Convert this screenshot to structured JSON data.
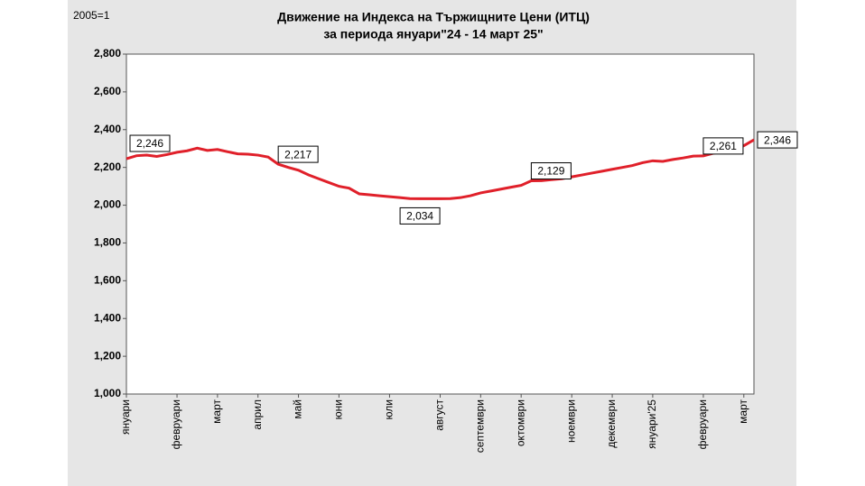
{
  "chart_data": {
    "type": "line",
    "title": [
      "Движение на Индекса на Тържищните Цени (ИТЦ)",
      "за периода януари\"24 - 14 март 25\""
    ],
    "y_unit": "2005=1",
    "categories": [
      "януари",
      null,
      null,
      null,
      null,
      "февруари",
      null,
      null,
      null,
      "март",
      null,
      null,
      null,
      "април",
      null,
      null,
      null,
      "май",
      null,
      null,
      null,
      "юни",
      null,
      null,
      null,
      null,
      "юли",
      null,
      null,
      null,
      null,
      "август",
      null,
      null,
      null,
      "септември",
      null,
      null,
      null,
      "октомври",
      null,
      null,
      null,
      null,
      "ноември",
      null,
      null,
      null,
      "декември",
      null,
      null,
      null,
      "януари'25",
      null,
      null,
      null,
      null,
      "февруари",
      null,
      null,
      null,
      "март",
      null
    ],
    "series": [
      {
        "name": "ИТЦ",
        "color": "#e0202a",
        "values": [
          2.246,
          2.262,
          2.265,
          2.258,
          2.268,
          2.28,
          2.288,
          2.302,
          2.29,
          2.295,
          2.283,
          2.272,
          2.27,
          2.265,
          2.255,
          2.217,
          2.2,
          2.185,
          2.16,
          2.14,
          2.12,
          2.1,
          2.09,
          2.06,
          2.055,
          2.05,
          2.045,
          2.04,
          2.035,
          2.034,
          2.034,
          2.034,
          2.035,
          2.04,
          2.05,
          2.065,
          2.075,
          2.085,
          2.095,
          2.105,
          2.129,
          2.13,
          2.135,
          2.14,
          2.15,
          2.16,
          2.17,
          2.18,
          2.19,
          2.2,
          2.21,
          2.225,
          2.235,
          2.232,
          2.242,
          2.25,
          2.26,
          2.261,
          2.275,
          2.285,
          2.295,
          2.315,
          2.346
        ],
        "value_labels": [
          "2,246",
          null,
          null,
          null,
          null,
          null,
          null,
          null,
          null,
          null,
          null,
          null,
          null,
          null,
          null,
          "2,217",
          null,
          null,
          null,
          null,
          null,
          null,
          null,
          null,
          null,
          null,
          null,
          null,
          null,
          "2,034",
          null,
          null,
          null,
          null,
          null,
          null,
          null,
          null,
          null,
          null,
          "2,129",
          null,
          null,
          null,
          null,
          null,
          null,
          null,
          null,
          null,
          null,
          null,
          null,
          null,
          null,
          null,
          null,
          "2,261",
          null,
          null,
          null,
          null,
          "2,346"
        ]
      }
    ],
    "ylim": [
      1.0,
      2.8
    ],
    "yticks": [
      {
        "value": 1.0,
        "label": "1,000"
      },
      {
        "value": 1.2,
        "label": "1,200"
      },
      {
        "value": 1.4,
        "label": "1,400"
      },
      {
        "value": 1.6,
        "label": "1,600"
      },
      {
        "value": 1.8,
        "label": "1,800"
      },
      {
        "value": 2.0,
        "label": "2,000"
      },
      {
        "value": 2.2,
        "label": "2,200"
      },
      {
        "value": 2.4,
        "label": "2,400"
      },
      {
        "value": 2.6,
        "label": "2,600"
      },
      {
        "value": 2.8,
        "label": "2,800"
      }
    ],
    "grid": false
  }
}
